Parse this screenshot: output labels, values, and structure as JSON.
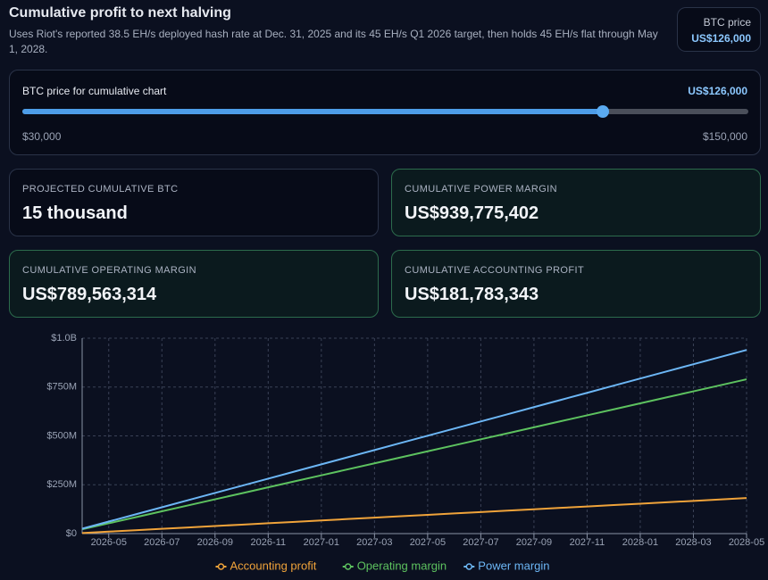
{
  "header": {
    "title": "Cumulative profit to next halving",
    "subtitle": "Uses Riot's reported 38.5 EH/s deployed hash rate at Dec. 31, 2025 and its 45 EH/s Q1 2026 target, then holds 45 EH/s flat through May 1, 2028.",
    "price_label": "BTC price",
    "price_value": "US$126,000"
  },
  "slider": {
    "label": "BTC price for cumulative chart",
    "value_label": "US$126,000",
    "min_label": "$30,000",
    "max_label": "$150,000",
    "value": 126000,
    "min": 30000,
    "max": 150000
  },
  "cards": [
    {
      "label": "PROJECTED CUMULATIVE BTC",
      "value": "15 thousand"
    },
    {
      "label": "CUMULATIVE POWER MARGIN",
      "value": "US$939,775,402"
    },
    {
      "label": "CUMULATIVE OPERATING MARGIN",
      "value": "US$789,563,314"
    },
    {
      "label": "CUMULATIVE ACCOUNTING PROFIT",
      "value": "US$181,783,343"
    }
  ],
  "chart_data": {
    "type": "line",
    "x": [
      "2026-04",
      "2026-05",
      "2026-06",
      "2026-07",
      "2026-08",
      "2026-09",
      "2026-10",
      "2026-11",
      "2026-12",
      "2027-01",
      "2027-02",
      "2027-03",
      "2027-04",
      "2027-05",
      "2027-06",
      "2027-07",
      "2027-08",
      "2027-09",
      "2027-10",
      "2027-11",
      "2027-12",
      "2028-01",
      "2028-02",
      "2028-03",
      "2028-04",
      "2028-05"
    ],
    "series": [
      {
        "name": "Accounting profit",
        "color": "#f0a33a",
        "values": [
          3,
          10.2,
          17.3,
          24.5,
          31.6,
          38.8,
          45.9,
          53.1,
          60.2,
          67.4,
          74.5,
          81.7,
          88.8,
          96,
          103.1,
          110.3,
          117.4,
          124.6,
          131.7,
          138.9,
          146,
          153.2,
          160.3,
          167.5,
          174.6,
          181.8
        ]
      },
      {
        "name": "Operating margin",
        "color": "#5dc25f",
        "values": [
          22,
          52.7,
          83.4,
          114.1,
          144.8,
          175.5,
          206.2,
          236.9,
          267.6,
          298.3,
          329,
          359.7,
          390.4,
          421.1,
          451.8,
          482.5,
          513.2,
          543.9,
          574.6,
          605.3,
          636,
          666.7,
          697.4,
          728.1,
          758.8,
          789.6
        ]
      },
      {
        "name": "Power margin",
        "color": "#6cb6f5",
        "values": [
          25,
          61.6,
          98.2,
          134.8,
          171.4,
          208,
          244.6,
          281.2,
          317.8,
          354.4,
          391,
          427.6,
          464.2,
          500.8,
          537.4,
          574,
          610.6,
          647.2,
          683.8,
          720.4,
          757,
          793.6,
          830.2,
          866.8,
          903.4,
          939.8
        ]
      }
    ],
    "xlim": [
      "2026-04",
      "2028-05"
    ],
    "xticks": [
      "2026-05",
      "2026-07",
      "2026-09",
      "2026-11",
      "2027-01",
      "2027-03",
      "2027-05",
      "2027-07",
      "2027-09",
      "2027-11",
      "2028-01",
      "2028-03",
      "2028-05"
    ],
    "ylim": [
      0,
      1000
    ],
    "yticks": [
      {
        "value": 0,
        "label": "$0"
      },
      {
        "value": 250,
        "label": "$250M"
      },
      {
        "value": 500,
        "label": "$500M"
      },
      {
        "value": 750,
        "label": "$750M"
      },
      {
        "value": 1000,
        "label": "$1.0B"
      }
    ],
    "grid": true
  }
}
